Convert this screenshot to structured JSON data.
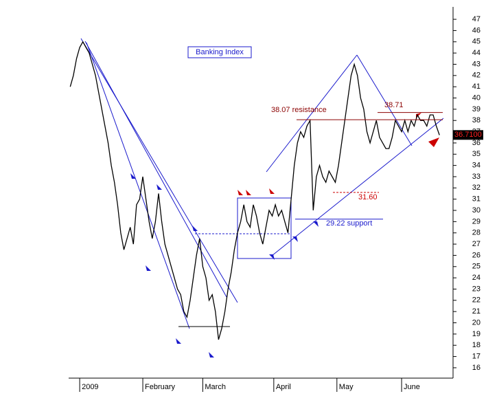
{
  "chart_data": {
    "type": "line",
    "title": "Banking Index",
    "x": [
      -3,
      -2,
      -1,
      0,
      1,
      2,
      3,
      4,
      5,
      6,
      7,
      8,
      9,
      10,
      11,
      12,
      13,
      14,
      15,
      16,
      17,
      18,
      19,
      20,
      21,
      22,
      23,
      24,
      25,
      26,
      27,
      28,
      29,
      30,
      31,
      32,
      33,
      34,
      35,
      36,
      37,
      38,
      39,
      40,
      41,
      42,
      43,
      44,
      45,
      46,
      47,
      48,
      49,
      50,
      51,
      52,
      53,
      54,
      55,
      56,
      57,
      58,
      59,
      60,
      61,
      62,
      63,
      64,
      65,
      66,
      67,
      68,
      69,
      70,
      71,
      72,
      73,
      74,
      75,
      76,
      77,
      78,
      79,
      80,
      81,
      82,
      83,
      84,
      85,
      86,
      87,
      88,
      89,
      90,
      91,
      92,
      93,
      94,
      95,
      96,
      97,
      98,
      99,
      100,
      101,
      102,
      103,
      104,
      105,
      106,
      107,
      108,
      109,
      110,
      111,
      112,
      113,
      114
    ],
    "series": [
      {
        "name": "Banking Index",
        "color": "#000000",
        "values": [
          41,
          42,
          43.5,
          44.5,
          45,
          44.5,
          44,
          43,
          42,
          40.5,
          39,
          37.5,
          36,
          34,
          32.5,
          30.5,
          28,
          26.5,
          27.5,
          28.5,
          27,
          30.5,
          31,
          33,
          31,
          29,
          27.5,
          29,
          31.5,
          29,
          27,
          26,
          25,
          24,
          23,
          22.5,
          21,
          20.5,
          22,
          24,
          26,
          27.5,
          25,
          24,
          22,
          22.5,
          21,
          18.5,
          19.5,
          21,
          23,
          24.5,
          26.5,
          28,
          29,
          30.5,
          29,
          28.5,
          30.5,
          29.5,
          28,
          27,
          28.5,
          30,
          29.5,
          30.5,
          29.5,
          30,
          29,
          28,
          31,
          34,
          36,
          37,
          36.5,
          37.5,
          38,
          30,
          33,
          34,
          33,
          32.5,
          33.5,
          33,
          32.5,
          34,
          36,
          38,
          40,
          42,
          43,
          42,
          40,
          39,
          37,
          36,
          37,
          38,
          36.5,
          36,
          35.5,
          35.5,
          36.5,
          38,
          37.5,
          37,
          38,
          37,
          38,
          37.5,
          38.5,
          38,
          38,
          37.5,
          38.5,
          38.5,
          37.5,
          36.7
        ]
      }
    ],
    "xlim": [
      -3.5,
      118.3
    ],
    "xticks": [
      {
        "value": 0,
        "label": "2009"
      },
      {
        "value": 20,
        "label": "February"
      },
      {
        "value": 39,
        "label": "March"
      },
      {
        "value": 61.5,
        "label": "April"
      },
      {
        "value": 81.5,
        "label": "May"
      },
      {
        "value": 102,
        "label": "June"
      }
    ],
    "ylim": [
      15.2,
      47.8
    ],
    "yticks": [
      16,
      17,
      18,
      19,
      20,
      21,
      22,
      23,
      24,
      25,
      26,
      27,
      28,
      29,
      30,
      31,
      32,
      33,
      34,
      35,
      36,
      37,
      38,
      39,
      40,
      41,
      42,
      43,
      44,
      45,
      46,
      47
    ],
    "levels": [
      {
        "label": "38.07 resistance",
        "value": 38.07,
        "color": "#8b0000"
      },
      {
        "label": "38.71",
        "value": 38.71,
        "color": "#8b0000"
      },
      {
        "label": "31.60",
        "value": 31.6,
        "color": "#cc0000"
      },
      {
        "label": "29.22 support",
        "value": 29.22,
        "color": "#1a1acc"
      }
    ],
    "last_price": {
      "value": 36.71,
      "label": "36.7100"
    }
  }
}
